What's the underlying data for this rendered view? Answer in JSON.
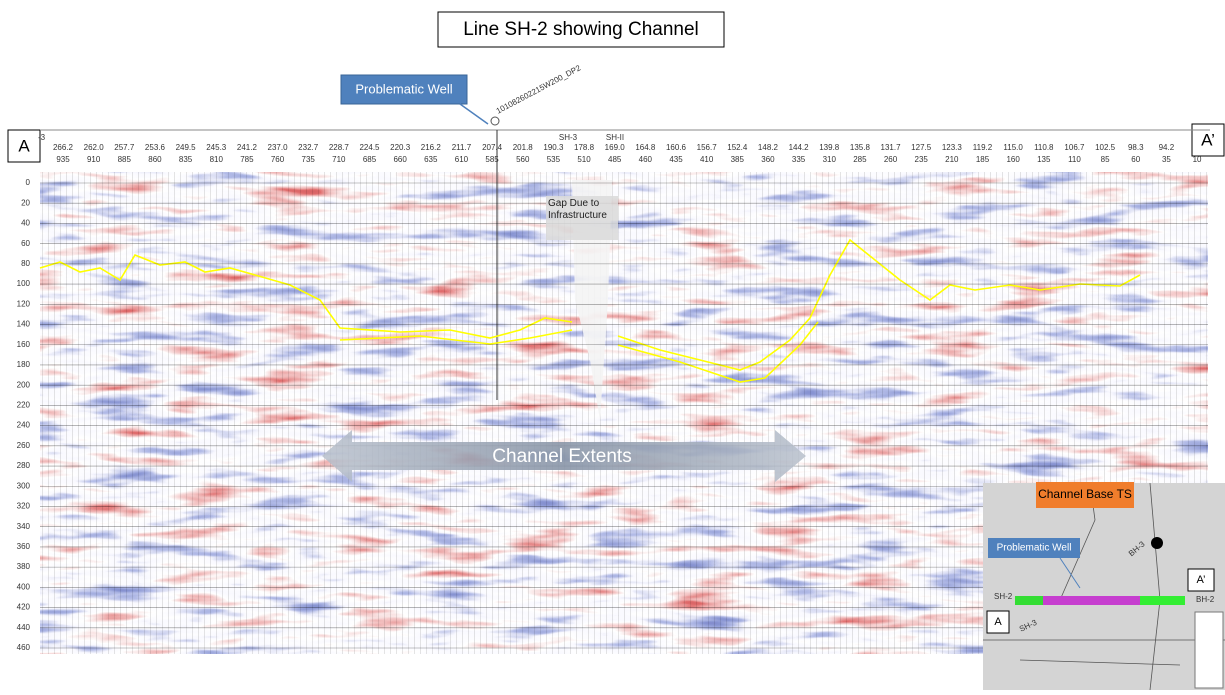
{
  "title": "Line SH-2 showing Channel",
  "callouts": {
    "problematic_well": "Problematic Well",
    "well_name": "101082602215W200_DP2",
    "point_a": "A",
    "point_a_prime": "A’",
    "gap": "Gap Due to Infrastructure",
    "channel_extents": "Channel Extents"
  },
  "section": {
    "left_label": "-3",
    "well_markers": [
      "SH-3",
      "SH-II"
    ],
    "trace_labels": [
      "266.2",
      "262.0",
      "257.7",
      "253.6",
      "249.5",
      "245.3",
      "241.2",
      "237.0",
      "232.7",
      "228.7",
      "224.5",
      "220.3",
      "216.2",
      "211.7",
      "207.4",
      "201.8",
      "190.3",
      "178.8",
      "169.0",
      "164.8",
      "160.6",
      "156.7",
      "152.4",
      "148.2",
      "144.2",
      "139.8",
      "135.8",
      "131.7",
      "127.5",
      "123.3",
      "119.2",
      "115.0",
      "110.8",
      "106.7",
      "102.5",
      "98.3",
      "94.2"
    ],
    "cdp_labels": [
      935,
      910,
      885,
      860,
      835,
      810,
      785,
      760,
      735,
      710,
      685,
      660,
      635,
      610,
      585,
      560,
      535,
      510,
      485,
      460,
      435,
      410,
      385,
      360,
      335,
      310,
      285,
      260,
      235,
      210,
      185,
      160,
      135,
      110,
      85,
      60,
      35,
      10
    ],
    "depth_ticks": [
      0,
      20,
      40,
      60,
      80,
      100,
      120,
      140,
      160,
      180,
      200,
      220,
      240,
      260,
      280,
      300,
      320,
      340,
      360,
      380,
      400,
      420,
      440,
      460
    ]
  },
  "inset": {
    "title": "Channel Base TS",
    "problematic_well": "Problematic Well",
    "point_a": "A",
    "point_a_prime": "A’",
    "line_left": "SH-2",
    "line_right": "BH-2",
    "line_cross": "SH-3",
    "line_north": "BH-3"
  }
}
